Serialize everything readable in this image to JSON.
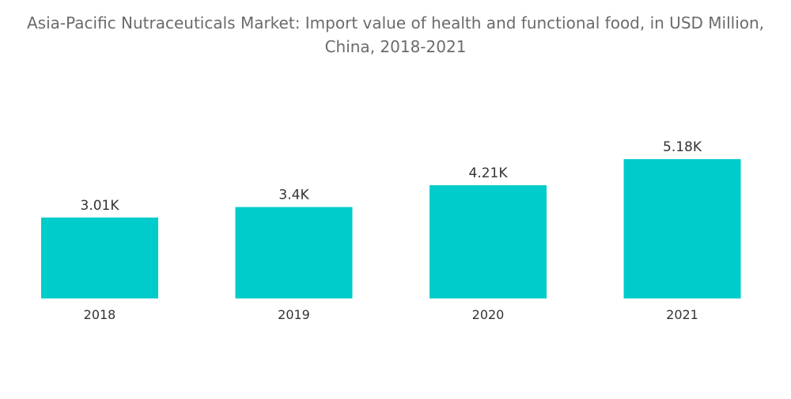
{
  "chart_data": {
    "type": "bar",
    "title": "Asia-Pacific Nutraceuticals Market: Import value of health and functional food, in USD Million, China, 2018-2021",
    "categories": [
      "2018",
      "2019",
      "2020",
      "2021"
    ],
    "values": [
      3010,
      3400,
      4210,
      5180
    ],
    "value_labels": [
      "3.01K",
      "3.4K",
      "4.21K",
      "5.18K"
    ],
    "xlabel": "",
    "ylabel": "",
    "ylim": [
      0,
      5500
    ],
    "grid": false,
    "legend": "none",
    "bar_color": "#00cccc"
  }
}
